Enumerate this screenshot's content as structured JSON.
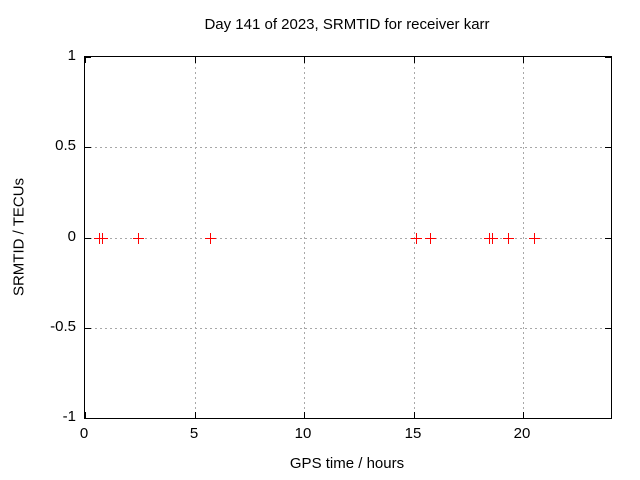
{
  "title": "Day 141 of 2023, SRMTID for receiver karr",
  "colors": {
    "background": "#ffffff",
    "border": "#000000",
    "grid": "#a8a8a8",
    "marker": "#ff0000",
    "text": "#000000"
  },
  "chart_data": {
    "type": "scatter",
    "title": "Day 141 of 2023, SRMTID for receiver karr",
    "xlabel": "GPS time / hours",
    "ylabel": "SRMTID / TECUs",
    "xlim": [
      0,
      24
    ],
    "ylim": [
      -1,
      1
    ],
    "xticks": [
      0,
      5,
      10,
      15,
      20
    ],
    "xtick_labels": [
      "0",
      "5",
      "10",
      "15",
      "20"
    ],
    "yticks": [
      -1,
      -0.5,
      0,
      0.5,
      1
    ],
    "ytick_labels": [
      "-1",
      "-0.5",
      "0",
      "0.5",
      "1"
    ],
    "grid": true,
    "legend_position": "none",
    "marker": "plus",
    "marker_color": "#ff0000",
    "series": [
      {
        "name": "SRMTID",
        "x": [
          0.64,
          0.78,
          2.42,
          5.7,
          15.1,
          15.74,
          18.45,
          18.55,
          19.3,
          20.49
        ],
        "y": [
          0,
          0,
          0,
          0,
          0,
          0,
          0,
          0,
          0,
          0
        ]
      }
    ]
  }
}
